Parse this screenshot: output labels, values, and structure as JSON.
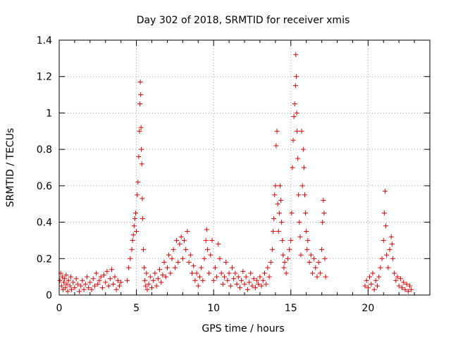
{
  "chart_data": {
    "type": "scatter",
    "title": "Day 302 of 2018, SRMTID for receiver xmis",
    "xlabel": "GPS time / hours",
    "ylabel": "SRMTID / TECUs",
    "xlim": [
      0,
      24
    ],
    "ylim": [
      0,
      1.4
    ],
    "xticks": [
      0,
      5,
      10,
      15,
      20
    ],
    "yticks": [
      0,
      0.2,
      0.4,
      0.6,
      0.8,
      1,
      1.2,
      1.4
    ],
    "xtick_labels": [
      "0",
      "5",
      "10",
      "15",
      "20"
    ],
    "ytick_labels": [
      "0",
      "0.2",
      "0.4",
      "0.6",
      "0.8",
      "1",
      "1.2",
      "1.4"
    ],
    "grid": true,
    "marker": "+",
    "marker_color": "#e00000",
    "series": [
      {
        "name": "SRMTID",
        "points": [
          [
            0.05,
            0.08
          ],
          [
            0.1,
            0.12
          ],
          [
            0.15,
            0.05
          ],
          [
            0.2,
            0.1
          ],
          [
            0.25,
            0.03
          ],
          [
            0.3,
            0.07
          ],
          [
            0.35,
            0.09
          ],
          [
            0.4,
            0.04
          ],
          [
            0.45,
            0.11
          ],
          [
            0.5,
            0.06
          ],
          [
            0.55,
            0.02
          ],
          [
            0.6,
            0.08
          ],
          [
            0.7,
            0.05
          ],
          [
            0.75,
            0.1
          ],
          [
            0.8,
            0.03
          ],
          [
            0.9,
            0.07
          ],
          [
            1.0,
            0.04
          ],
          [
            1.1,
            0.09
          ],
          [
            1.2,
            0.06
          ],
          [
            1.3,
            0.02
          ],
          [
            1.4,
            0.05
          ],
          [
            1.5,
            0.08
          ],
          [
            1.6,
            0.03
          ],
          [
            1.7,
            0.06
          ],
          [
            1.8,
            0.1
          ],
          [
            1.9,
            0.04
          ],
          [
            2.0,
            0.07
          ],
          [
            2.1,
            0.03
          ],
          [
            2.2,
            0.09
          ],
          [
            2.3,
            0.05
          ],
          [
            2.4,
            0.12
          ],
          [
            2.5,
            0.06
          ],
          [
            2.6,
            0.08
          ],
          [
            2.7,
            0.1
          ],
          [
            2.8,
            0.04
          ],
          [
            2.9,
            0.11
          ],
          [
            3.0,
            0.07
          ],
          [
            3.1,
            0.13
          ],
          [
            3.2,
            0.05
          ],
          [
            3.3,
            0.09
          ],
          [
            3.4,
            0.14
          ],
          [
            3.5,
            0.06
          ],
          [
            3.6,
            0.1
          ],
          [
            3.7,
            0.03
          ],
          [
            3.8,
            0.08
          ],
          [
            3.9,
            0.05
          ],
          [
            4.0,
            0.07
          ],
          [
            4.4,
            0.08
          ],
          [
            4.5,
            0.15
          ],
          [
            4.6,
            0.2
          ],
          [
            4.7,
            0.25
          ],
          [
            4.75,
            0.3
          ],
          [
            4.8,
            0.33
          ],
          [
            4.85,
            0.38
          ],
          [
            4.9,
            0.42
          ],
          [
            4.95,
            0.45
          ],
          [
            5.0,
            0.35
          ],
          [
            5.05,
            0.55
          ],
          [
            5.1,
            0.62
          ],
          [
            5.15,
            0.76
          ],
          [
            5.2,
            0.9
          ],
          [
            5.22,
            1.05
          ],
          [
            5.25,
            1.17
          ],
          [
            5.28,
            1.1
          ],
          [
            5.3,
            0.92
          ],
          [
            5.32,
            0.8
          ],
          [
            5.35,
            0.72
          ],
          [
            5.38,
            0.53
          ],
          [
            5.4,
            0.42
          ],
          [
            5.45,
            0.25
          ],
          [
            5.5,
            0.15
          ],
          [
            5.55,
            0.08
          ],
          [
            5.6,
            0.05
          ],
          [
            5.65,
            0.12
          ],
          [
            5.7,
            0.03
          ],
          [
            5.8,
            0.06
          ],
          [
            5.9,
            0.1
          ],
          [
            6.0,
            0.04
          ],
          [
            6.1,
            0.08
          ],
          [
            6.2,
            0.12
          ],
          [
            6.3,
            0.05
          ],
          [
            6.4,
            0.09
          ],
          [
            6.5,
            0.14
          ],
          [
            6.6,
            0.07
          ],
          [
            6.7,
            0.11
          ],
          [
            6.8,
            0.18
          ],
          [
            6.9,
            0.1
          ],
          [
            7.0,
            0.15
          ],
          [
            7.1,
            0.22
          ],
          [
            7.2,
            0.12
          ],
          [
            7.3,
            0.2
          ],
          [
            7.4,
            0.25
          ],
          [
            7.5,
            0.15
          ],
          [
            7.6,
            0.3
          ],
          [
            7.7,
            0.18
          ],
          [
            7.8,
            0.28
          ],
          [
            7.9,
            0.32
          ],
          [
            8.0,
            0.2
          ],
          [
            8.1,
            0.3
          ],
          [
            8.2,
            0.25
          ],
          [
            8.3,
            0.35
          ],
          [
            8.4,
            0.18
          ],
          [
            8.5,
            0.22
          ],
          [
            8.6,
            0.12
          ],
          [
            8.7,
            0.16
          ],
          [
            8.8,
            0.08
          ],
          [
            8.9,
            0.12
          ],
          [
            9.0,
            0.05
          ],
          [
            9.1,
            0.1
          ],
          [
            9.2,
            0.15
          ],
          [
            9.3,
            0.08
          ],
          [
            9.4,
            0.2
          ],
          [
            9.5,
            0.3
          ],
          [
            9.55,
            0.36
          ],
          [
            9.6,
            0.25
          ],
          [
            9.7,
            0.12
          ],
          [
            9.8,
            0.22
          ],
          [
            9.9,
            0.3
          ],
          [
            10.0,
            0.08
          ],
          [
            10.1,
            0.15
          ],
          [
            10.2,
            0.1
          ],
          [
            10.3,
            0.28
          ],
          [
            10.4,
            0.2
          ],
          [
            10.5,
            0.12
          ],
          [
            10.6,
            0.06
          ],
          [
            10.7,
            0.1
          ],
          [
            10.8,
            0.18
          ],
          [
            10.9,
            0.08
          ],
          [
            11.0,
            0.12
          ],
          [
            11.1,
            0.05
          ],
          [
            11.2,
            0.15
          ],
          [
            11.3,
            0.09
          ],
          [
            11.4,
            0.12
          ],
          [
            11.5,
            0.06
          ],
          [
            11.6,
            0.1
          ],
          [
            11.7,
            0.04
          ],
          [
            11.8,
            0.08
          ],
          [
            11.9,
            0.13
          ],
          [
            12.0,
            0.06
          ],
          [
            12.1,
            0.1
          ],
          [
            12.2,
            0.03
          ],
          [
            12.3,
            0.07
          ],
          [
            12.4,
            0.12
          ],
          [
            12.5,
            0.05
          ],
          [
            12.6,
            0.09
          ],
          [
            12.7,
            0.04
          ],
          [
            12.8,
            0.08
          ],
          [
            12.9,
            0.06
          ],
          [
            13.0,
            0.1
          ],
          [
            13.1,
            0.05
          ],
          [
            13.2,
            0.08
          ],
          [
            13.3,
            0.12
          ],
          [
            13.4,
            0.06
          ],
          [
            13.5,
            0.15
          ],
          [
            13.6,
            0.1
          ],
          [
            13.7,
            0.18
          ],
          [
            13.8,
            0.25
          ],
          [
            13.85,
            0.35
          ],
          [
            13.9,
            0.42
          ],
          [
            13.95,
            0.55
          ],
          [
            14.0,
            0.6
          ],
          [
            14.05,
            0.82
          ],
          [
            14.1,
            0.9
          ],
          [
            14.15,
            0.5
          ],
          [
            14.2,
            0.35
          ],
          [
            14.25,
            0.45
          ],
          [
            14.3,
            0.6
          ],
          [
            14.35,
            0.52
          ],
          [
            14.4,
            0.4
          ],
          [
            14.45,
            0.3
          ],
          [
            14.5,
            0.22
          ],
          [
            14.55,
            0.15
          ],
          [
            14.6,
            0.18
          ],
          [
            14.7,
            0.12
          ],
          [
            14.8,
            0.2
          ],
          [
            14.9,
            0.25
          ],
          [
            15.0,
            0.3
          ],
          [
            15.05,
            0.45
          ],
          [
            15.1,
            0.7
          ],
          [
            15.15,
            0.85
          ],
          [
            15.2,
            0.98
          ],
          [
            15.25,
            1.05
          ],
          [
            15.3,
            1.15
          ],
          [
            15.32,
            1.32
          ],
          [
            15.35,
            1.2
          ],
          [
            15.38,
            1.0
          ],
          [
            15.4,
            0.9
          ],
          [
            15.45,
            0.75
          ],
          [
            15.5,
            0.55
          ],
          [
            15.55,
            0.4
          ],
          [
            15.6,
            0.32
          ],
          [
            15.65,
            0.22
          ],
          [
            15.7,
            0.9
          ],
          [
            15.75,
            0.6
          ],
          [
            15.8,
            0.8
          ],
          [
            15.85,
            0.7
          ],
          [
            15.9,
            0.55
          ],
          [
            15.95,
            0.45
          ],
          [
            16.0,
            0.35
          ],
          [
            16.05,
            0.25
          ],
          [
            16.1,
            0.3
          ],
          [
            16.2,
            0.18
          ],
          [
            16.3,
            0.22
          ],
          [
            16.4,
            0.12
          ],
          [
            16.5,
            0.2
          ],
          [
            16.6,
            0.15
          ],
          [
            16.7,
            0.1
          ],
          [
            16.8,
            0.18
          ],
          [
            16.9,
            0.12
          ],
          [
            17.0,
            0.25
          ],
          [
            17.05,
            0.4
          ],
          [
            17.1,
            0.52
          ],
          [
            17.15,
            0.45
          ],
          [
            17.2,
            0.2
          ],
          [
            17.25,
            0.1
          ],
          [
            19.8,
            0.05
          ],
          [
            19.9,
            0.08
          ],
          [
            20.0,
            0.04
          ],
          [
            20.1,
            0.1
          ],
          [
            20.2,
            0.06
          ],
          [
            20.3,
            0.12
          ],
          [
            20.4,
            0.03
          ],
          [
            20.5,
            0.08
          ],
          [
            20.6,
            0.05
          ],
          [
            20.7,
            0.1
          ],
          [
            20.8,
            0.15
          ],
          [
            20.9,
            0.2
          ],
          [
            21.0,
            0.3
          ],
          [
            21.05,
            0.45
          ],
          [
            21.1,
            0.57
          ],
          [
            21.15,
            0.38
          ],
          [
            21.2,
            0.22
          ],
          [
            21.3,
            0.15
          ],
          [
            21.4,
            0.25
          ],
          [
            21.5,
            0.32
          ],
          [
            21.55,
            0.28
          ],
          [
            21.6,
            0.2
          ],
          [
            21.7,
            0.12
          ],
          [
            21.8,
            0.08
          ],
          [
            21.9,
            0.1
          ],
          [
            22.0,
            0.05
          ],
          [
            22.1,
            0.09
          ],
          [
            22.2,
            0.04
          ],
          [
            22.3,
            0.07
          ],
          [
            22.4,
            0.03
          ],
          [
            22.5,
            0.06
          ],
          [
            22.6,
            0.02
          ],
          [
            22.7,
            0.05
          ],
          [
            22.8,
            0.03
          ]
        ]
      }
    ]
  }
}
